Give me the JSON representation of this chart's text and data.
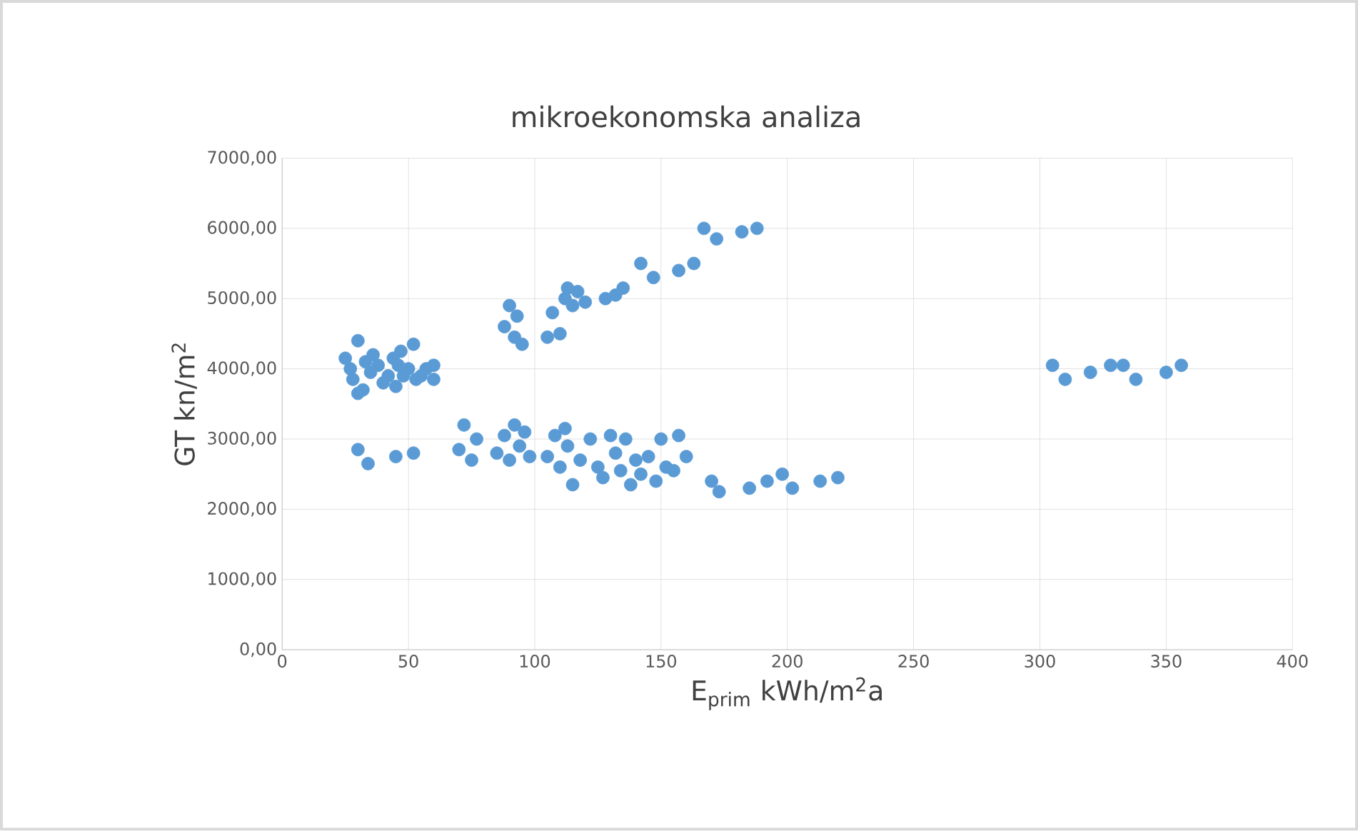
{
  "chart_data": {
    "type": "scatter",
    "title": "mikroekonomska analiza",
    "xlabel": "E$_{prim}$ kWh/m$^{2}$a",
    "ylabel": "GT kn/m$^{2}$",
    "xlim": [
      0,
      400
    ],
    "xticks": [
      0,
      50,
      100,
      150,
      200,
      250,
      300,
      350,
      400
    ],
    "ylim": [
      0,
      7000
    ],
    "yticks": [
      {
        "value": 0,
        "label": "0,00"
      },
      {
        "value": 1000,
        "label": "1000,00"
      },
      {
        "value": 2000,
        "label": "2000,00"
      },
      {
        "value": 3000,
        "label": "3000,00"
      },
      {
        "value": 4000,
        "label": "4000,00"
      },
      {
        "value": 5000,
        "label": "5000,00"
      },
      {
        "value": 6000,
        "label": "6000,00"
      },
      {
        "value": 7000,
        "label": "7000,00"
      }
    ],
    "grid": true,
    "marker": "circle",
    "series": [
      {
        "color": "#5b9bd5",
        "x": [
          25,
          27,
          28,
          30,
          32,
          33,
          35,
          38,
          40,
          42,
          44,
          45,
          47,
          48,
          50,
          52,
          53,
          55,
          57,
          60,
          60,
          30,
          36,
          46,
          30,
          34,
          45,
          52,
          88,
          90,
          92,
          93,
          95,
          105,
          107,
          110,
          112,
          113,
          115,
          117,
          120,
          128,
          132,
          135,
          142,
          147,
          157,
          163,
          167,
          172,
          182,
          188,
          70,
          72,
          75,
          77,
          85,
          88,
          90,
          92,
          94,
          96,
          98,
          105,
          108,
          110,
          112,
          113,
          115,
          118,
          122,
          125,
          127,
          130,
          132,
          134,
          136,
          138,
          140,
          142,
          145,
          148,
          150,
          152,
          155,
          157,
          160,
          170,
          173,
          185,
          192,
          198,
          202,
          213,
          220,
          305,
          310,
          320,
          328,
          333,
          338,
          350,
          356
        ],
        "values": [
          4150,
          4000,
          3850,
          4400,
          3700,
          4100,
          3950,
          4050,
          3800,
          3900,
          4150,
          3750,
          4250,
          3900,
          4000,
          4350,
          3850,
          3900,
          4000,
          4050,
          3850,
          3650,
          4200,
          4050,
          2850,
          2650,
          2750,
          2800,
          4600,
          4900,
          4450,
          4750,
          4350,
          4450,
          4800,
          4500,
          5000,
          5150,
          4900,
          5100,
          4950,
          5000,
          5050,
          5150,
          5500,
          5300,
          5400,
          5500,
          6000,
          5850,
          5950,
          6000,
          2850,
          3200,
          2700,
          3000,
          2800,
          3050,
          2700,
          3200,
          2900,
          3100,
          2750,
          2750,
          3050,
          2600,
          3150,
          2900,
          2350,
          2700,
          3000,
          2600,
          2450,
          3050,
          2800,
          2550,
          3000,
          2350,
          2700,
          2500,
          2750,
          2400,
          3000,
          2600,
          2550,
          3050,
          2750,
          2400,
          2250,
          2300,
          2400,
          2500,
          2300,
          2400,
          2450,
          4050,
          3850,
          3950,
          4050,
          4050,
          3850,
          3950,
          4050
        ]
      }
    ]
  }
}
